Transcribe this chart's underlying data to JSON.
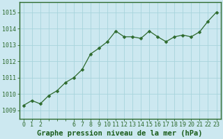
{
  "x": [
    0,
    1,
    2,
    3,
    4,
    5,
    6,
    7,
    8,
    9,
    10,
    11,
    12,
    13,
    14,
    15,
    16,
    17,
    18,
    19,
    20,
    21,
    22,
    23
  ],
  "y": [
    1009.3,
    1009.6,
    1009.4,
    1009.9,
    1010.2,
    1010.7,
    1011.0,
    1011.5,
    1012.45,
    1012.8,
    1013.2,
    1013.85,
    1013.5,
    1013.5,
    1013.4,
    1013.85,
    1013.5,
    1013.2,
    1013.5,
    1013.6,
    1013.5,
    1013.8,
    1014.45,
    1015.0
  ],
  "x_tick_labels": [
    "0",
    "1",
    "2",
    "",
    "",
    "",
    "6",
    "7",
    "8",
    "9",
    "10",
    "11",
    "12",
    "13",
    "14",
    "15",
    "16",
    "17",
    "18",
    "19",
    "20",
    "21",
    "22",
    "23"
  ],
  "line_color": "#2d6a2d",
  "marker": "D",
  "marker_size": 2.5,
  "bg_color": "#cce8f0",
  "grid_color": "#a8d4dc",
  "xlabel": "Graphe pression niveau de la mer (hPa)",
  "xlabel_color": "#1a5c1a",
  "xlabel_fontsize": 7.5,
  "ylabel_ticks": [
    1009,
    1010,
    1011,
    1012,
    1013,
    1014,
    1015
  ],
  "ylim": [
    1008.5,
    1015.6
  ],
  "xlim": [
    -0.5,
    23.5
  ],
  "tick_fontsize": 6.0,
  "tick_label_color": "#2d6a2d",
  "border_color": "#2d6a2d"
}
